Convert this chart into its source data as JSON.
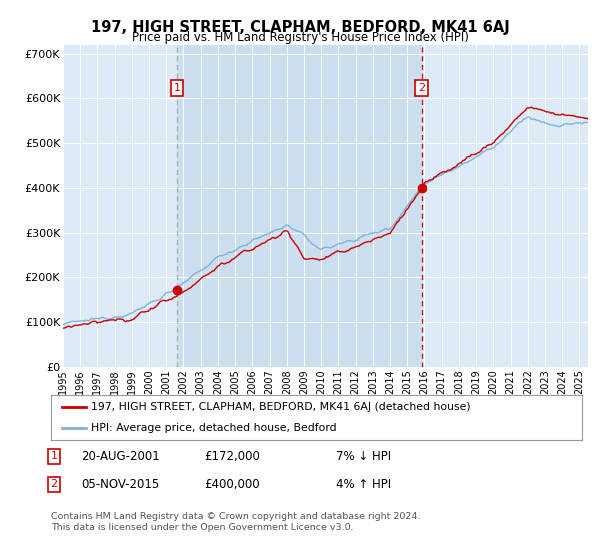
{
  "title": "197, HIGH STREET, CLAPHAM, BEDFORD, MK41 6AJ",
  "subtitle": "Price paid vs. HM Land Registry's House Price Index (HPI)",
  "bg_color": "#ddeaf7",
  "shade_color": "#ccdff0",
  "grid_color": "#ffffff",
  "red_line_color": "#cc0000",
  "blue_line_color": "#7fb3d9",
  "sale1_date_num": 2001.63,
  "sale1_price": 172000,
  "sale2_date_num": 2015.84,
  "sale2_price": 400000,
  "sale1_info": "20-AUG-2001",
  "sale1_amount": "£172,000",
  "sale1_hpi": "7% ↓ HPI",
  "sale2_info": "05-NOV-2015",
  "sale2_amount": "£400,000",
  "sale2_hpi": "4% ↑ HPI",
  "legend_line1": "197, HIGH STREET, CLAPHAM, BEDFORD, MK41 6AJ (detached house)",
  "legend_line2": "HPI: Average price, detached house, Bedford",
  "footnote": "Contains HM Land Registry data © Crown copyright and database right 2024.\nThis data is licensed under the Open Government Licence v3.0.",
  "xmin": 1995.0,
  "xmax": 2025.5,
  "ymin": 0,
  "ymax": 720000,
  "yticks": [
    0,
    100000,
    200000,
    300000,
    400000,
    500000,
    600000,
    700000
  ],
  "ytick_labels": [
    "£0",
    "£100K",
    "£200K",
    "£300K",
    "£400K",
    "£500K",
    "£600K",
    "£700K"
  ]
}
